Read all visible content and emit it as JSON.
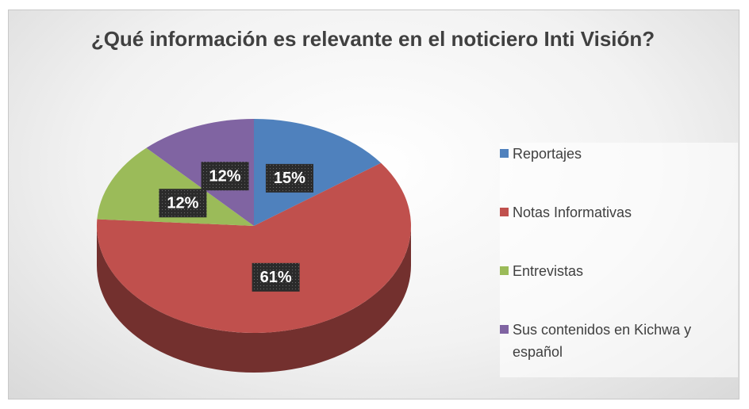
{
  "chart_data": {
    "type": "pie",
    "title": "¿Qué información es relevante en el noticiero Inti Visión?",
    "categories": [
      "Reportajes",
      "Notas Informativas",
      "Entrevistas",
      "Sus contenidos en Kichwa y español"
    ],
    "values": [
      15,
      61,
      12,
      12
    ],
    "value_labels": [
      "15%",
      "61%",
      "12%",
      "12%"
    ],
    "colors": [
      "#4f81bd",
      "#c0504d",
      "#9bbb59",
      "#8064a2"
    ],
    "legend": "right"
  }
}
